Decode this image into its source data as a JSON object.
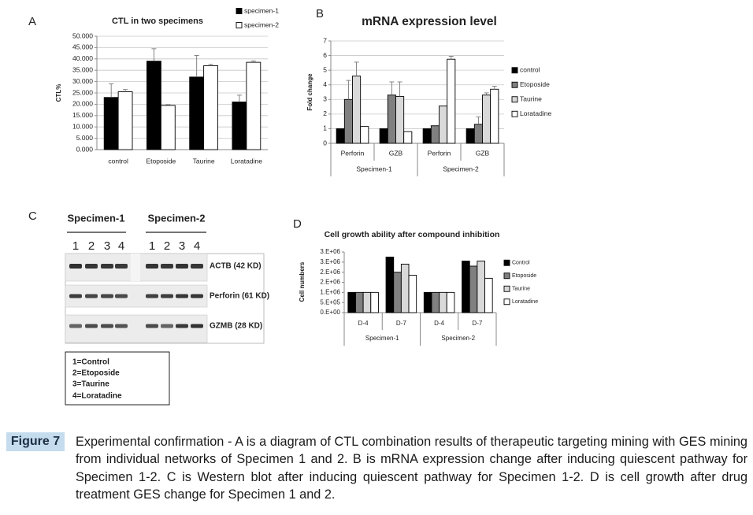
{
  "chart_data": [
    {
      "type": "bar",
      "panel_label": "A",
      "title": "CTL in two specimens",
      "y_label": "CTL%",
      "categories": [
        "control",
        "Etoposide",
        "Taurine",
        "Loratadine"
      ],
      "series": [
        {
          "name": "specimen-1",
          "color": "#000000",
          "values": [
            23,
            39,
            32,
            21
          ],
          "errors": [
            6,
            5.5,
            9.5,
            3
          ]
        },
        {
          "name": "specimen-2",
          "color": "#ffffff",
          "values": [
            25.5,
            19.5,
            37,
            38.5
          ],
          "errors": [
            1,
            0.3,
            0.6,
            0.6
          ]
        }
      ],
      "ylim": [
        0,
        50
      ],
      "yticks": [
        {
          "value": 0,
          "label": "0.000"
        },
        {
          "value": 5,
          "label": "5.000"
        },
        {
          "value": 10,
          "label": "10.000"
        },
        {
          "value": 15,
          "label": "15.000"
        },
        {
          "value": 20,
          "label": "20.000"
        },
        {
          "value": 25,
          "label": "25.000"
        },
        {
          "value": 30,
          "label": "30.000"
        },
        {
          "value": 35,
          "label": "35.000"
        },
        {
          "value": 40,
          "label": "40.000"
        },
        {
          "value": 45,
          "label": "45.000"
        },
        {
          "value": 50,
          "label": "50.000"
        }
      ],
      "grid": true,
      "legend_position": "top right"
    },
    {
      "type": "bar",
      "panel_label": "B",
      "title": "mRNA expression level",
      "y_label": "Fold change",
      "categories": [
        "Perforin",
        "GZB",
        "Perforin",
        "GZB"
      ],
      "groups": [
        "Specimen-1",
        "Specimen-2"
      ],
      "series": [
        {
          "name": "control",
          "color": "#000000",
          "values": [
            1,
            1,
            1,
            1
          ],
          "errors": [
            null,
            null,
            null,
            null
          ]
        },
        {
          "name": "Etoposide",
          "color": "#808080",
          "values": [
            3,
            3.3,
            1.2,
            1.3
          ],
          "errors": [
            1.3,
            0.9,
            null,
            0.5
          ]
        },
        {
          "name": "Taurine",
          "color": "#d9d9d9",
          "values": [
            4.6,
            3.2,
            2.55,
            3.3
          ],
          "errors": [
            0.95,
            1,
            null,
            0.15
          ]
        },
        {
          "name": "Loratadine",
          "color": "#ffffff",
          "values": [
            1.15,
            0.8,
            5.75,
            3.7
          ],
          "errors": [
            null,
            null,
            0.2,
            0.2
          ]
        }
      ],
      "ylim": [
        0,
        7
      ],
      "yticks": [
        0,
        1,
        2,
        3,
        4,
        5,
        6,
        7
      ],
      "grid": true,
      "legend_position": "right"
    },
    {
      "type": "bar",
      "panel_label": "D",
      "title": "Cell growth ability after compound inhibition",
      "y_label": "Cell numbers",
      "categories": [
        "D-4",
        "D-7",
        "D-4",
        "D-7"
      ],
      "groups": [
        "Specimen-1",
        "Specimen-2"
      ],
      "series": [
        {
          "name": "Control",
          "color": "#000000",
          "values": [
            1000000,
            2750000,
            1000000,
            2550000
          ]
        },
        {
          "name": "Etoposide",
          "color": "#808080",
          "values": [
            1000000,
            2000000,
            1000000,
            2300000
          ]
        },
        {
          "name": "Taurine",
          "color": "#d9d9d9",
          "values": [
            1000000,
            2400000,
            1000000,
            2550000
          ]
        },
        {
          "name": "Loratadine",
          "color": "#ffffff",
          "values": [
            1000000,
            1850000,
            1000000,
            1700000
          ]
        }
      ],
      "ylim": [
        0,
        3000000
      ],
      "yticks": [
        {
          "value": 0,
          "label": "0.E+00"
        },
        {
          "value": 500000,
          "label": "5.E+05"
        },
        {
          "value": 1000000,
          "label": "1.E+06"
        },
        {
          "value": 1500000,
          "label": "2.E+06"
        },
        {
          "value": 2000000,
          "label": "2.E+06"
        },
        {
          "value": 2500000,
          "label": "3.E+06"
        },
        {
          "value": 3000000,
          "label": "3.E+06"
        }
      ],
      "grid": false,
      "legend_position": "right"
    }
  ],
  "panel_c": {
    "panel_label": "C",
    "groups": [
      "Specimen-1",
      "Specimen-2"
    ],
    "lanes": [
      [
        "1",
        "2",
        "3",
        "4"
      ],
      [
        "1",
        "2",
        "3",
        "4"
      ]
    ],
    "bands": [
      "ACTB (42 KD)",
      "Perforin (61 KD)",
      "GZMB (28 KD)"
    ],
    "key": [
      "1=Control",
      "2=Etoposide",
      "3=Taurine",
      "4=Loratadine"
    ]
  },
  "caption": {
    "label": "Figure 7",
    "text": "Experimental confirmation - A is a diagram of CTL combination results of therapeutic targeting mining with GES mining from individual networks of Specimen 1 and 2. B is mRNA expression change after inducing quiescent pathway for Specimen 1-2. C is Western blot after inducing quiescent pathway for Specimen 1-2. D is cell growth after drug treatment GES change for Specimen 1 and 2."
  }
}
